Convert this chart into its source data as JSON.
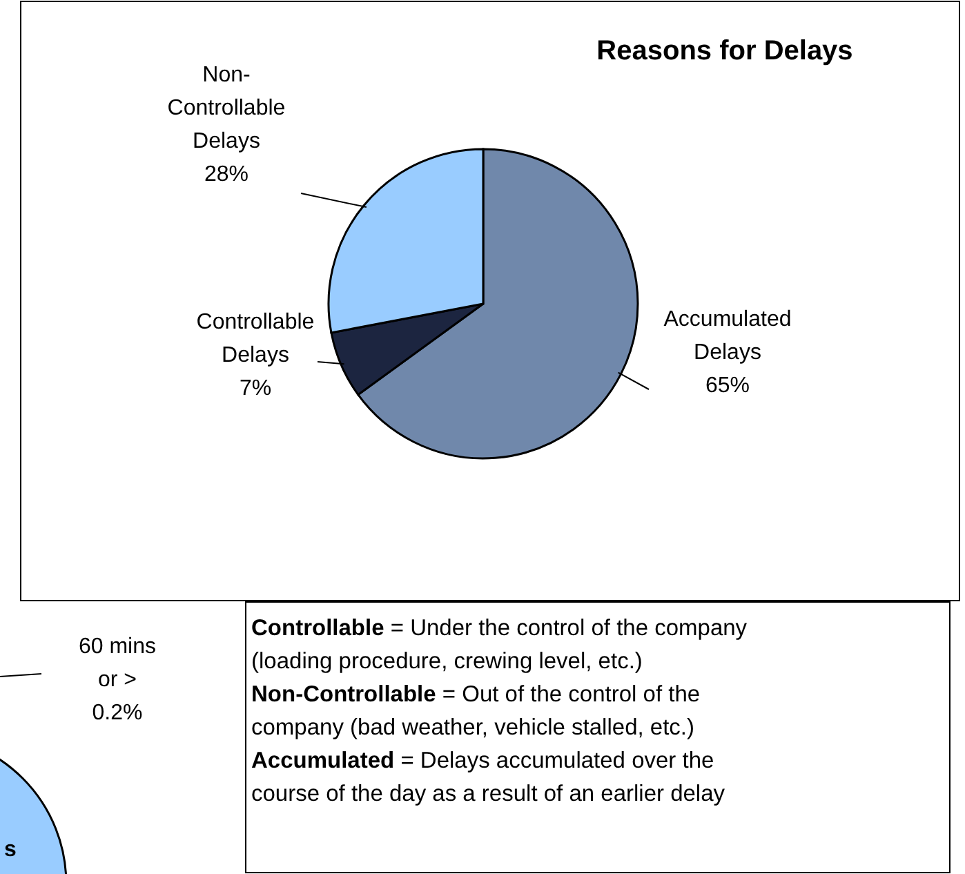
{
  "chart_data": [
    {
      "type": "pie",
      "title": "Reasons for Delays",
      "categories": [
        "Accumulated\nDelays",
        "Controllable\nDelays",
        "Non-\nControllable\nDelays"
      ],
      "values": [
        65,
        7,
        28
      ],
      "value_labels": [
        "65%",
        "7%",
        "28%"
      ],
      "colors": [
        "#7088ab",
        "#1c2540",
        "#99ccff"
      ]
    },
    {
      "type": "other",
      "annotations": [
        "60 mins\nor >\n0.2%",
        "s"
      ]
    },
    {
      "type": "other",
      "annotations": [
        "Controllable = Under the control of the company\n(loading procedure, crewing level, etc.)",
        "Non-Controllable = Out of the control of the\ncompany (bad weather, vehicle stalled, etc.)",
        "Accumulated = Delays accumulated over the\ncourse of the day as a result of an earlier delay"
      ]
    }
  ]
}
